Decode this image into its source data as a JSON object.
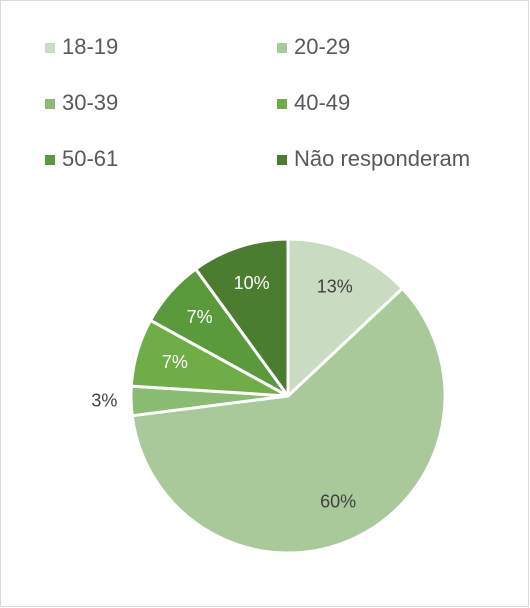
{
  "chart_data": {
    "type": "pie",
    "categories": [
      "18-19",
      "20-29",
      "30-39",
      "40-49",
      "50-61",
      "Não responderam"
    ],
    "values": [
      13,
      60,
      3,
      7,
      7,
      10
    ],
    "value_labels": [
      "13%",
      "60%",
      "3%",
      "7%",
      "7%",
      "10%"
    ],
    "colors": [
      "#c9dbc0",
      "#a9c99a",
      "#8abb72",
      "#6fad47",
      "#5a9a3c",
      "#4a7d30"
    ],
    "legend": "top"
  }
}
